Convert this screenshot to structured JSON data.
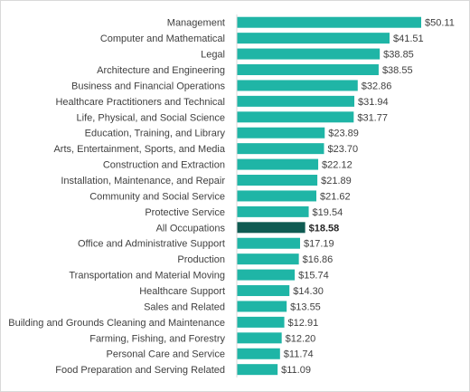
{
  "chart_data": {
    "type": "bar",
    "orientation": "horizontal",
    "title": "",
    "xlabel": "",
    "ylabel": "",
    "grid": false,
    "legend": "none",
    "value_format": "currency",
    "xlim": [
      0,
      50.11
    ],
    "categories": [
      "Management",
      "Computer and Mathematical",
      "Legal",
      "Architecture and Engineering",
      "Business and Financial Operations",
      "Healthcare Practitioners and Technical",
      "Life, Physical, and Social Science",
      "Education, Training, and Library",
      "Arts, Entertainment, Sports, and Media",
      "Construction and Extraction",
      "Installation, Maintenance, and Repair",
      "Community and Social Service",
      "Protective Service",
      "All Occupations",
      "Office and Administrative Support",
      "Production",
      "Transportation and Material Moving",
      "Healthcare Support",
      "Sales and Related",
      "Building and Grounds Cleaning and Maintenance",
      "Farming, Fishing, and Forestry",
      "Personal Care and Service",
      "Food Preparation and Serving Related"
    ],
    "values": [
      50.11,
      41.51,
      38.85,
      38.55,
      32.86,
      31.94,
      31.77,
      23.89,
      23.7,
      22.12,
      21.89,
      21.62,
      19.54,
      18.58,
      17.19,
      16.86,
      15.74,
      14.3,
      13.55,
      12.91,
      12.2,
      11.74,
      11.09
    ],
    "value_labels": [
      "$50.11",
      "$41.51",
      "$38.85",
      "$38.55",
      "$32.86",
      "$31.94",
      "$31.77",
      "$23.89",
      "$23.70",
      "$22.12",
      "$21.89",
      "$21.62",
      "$19.54",
      "$18.58",
      "$17.19",
      "$16.86",
      "$15.74",
      "$14.30",
      "$13.55",
      "$12.91",
      "$12.20",
      "$11.74",
      "$11.09"
    ],
    "highlight_category": "All Occupations",
    "colors": {
      "bar": "#1fb5a6",
      "highlight": "#0f5b52"
    }
  }
}
